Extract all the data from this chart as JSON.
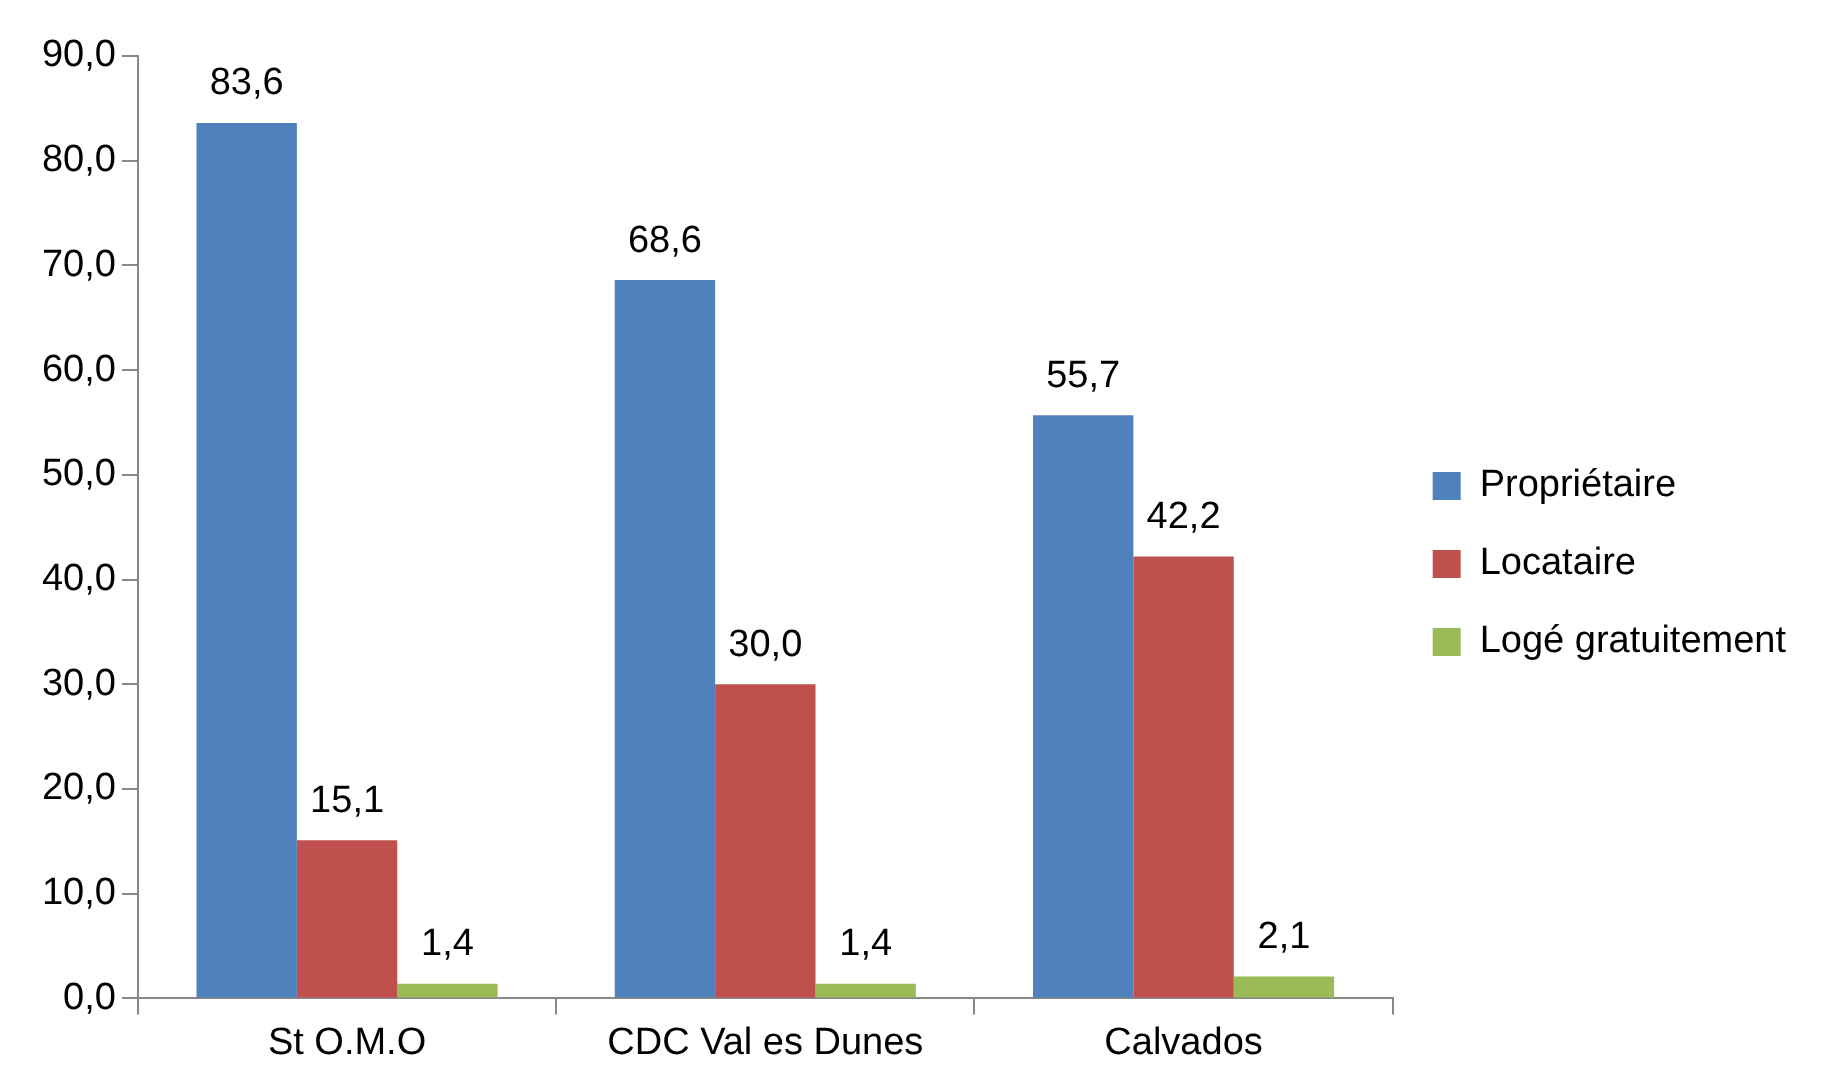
{
  "chart_data": {
    "type": "bar",
    "categories": [
      "St O.M.O",
      "CDC Val es Dunes",
      "Calvados"
    ],
    "series": [
      {
        "name": "Propriétaire",
        "color": "#4f81bd",
        "values": [
          83.6,
          68.6,
          55.7
        ],
        "value_labels": [
          "83,6",
          "68,6",
          "55,7"
        ]
      },
      {
        "name": "Locataire",
        "color": "#c0504d",
        "values": [
          15.1,
          30.0,
          42.2
        ],
        "value_labels": [
          "15,1",
          "30,0",
          "42,2"
        ]
      },
      {
        "name": "Logé gratuitement",
        "color": "#9bbb59",
        "values": [
          1.4,
          1.4,
          2.1
        ],
        "value_labels": [
          "1,4",
          "1,4",
          "2,1"
        ]
      }
    ],
    "ylim": [
      0,
      90
    ],
    "yticks": [
      {
        "value": 0,
        "label": "0,0"
      },
      {
        "value": 10,
        "label": "10,0"
      },
      {
        "value": 20,
        "label": "20,0"
      },
      {
        "value": 30,
        "label": "30,0"
      },
      {
        "value": 40,
        "label": "40,0"
      },
      {
        "value": 50,
        "label": "50,0"
      },
      {
        "value": 60,
        "label": "60,0"
      },
      {
        "value": 70,
        "label": "70,0"
      },
      {
        "value": 80,
        "label": "80,0"
      },
      {
        "value": 90,
        "label": "90,0"
      }
    ],
    "grid": false,
    "legend": "right"
  }
}
